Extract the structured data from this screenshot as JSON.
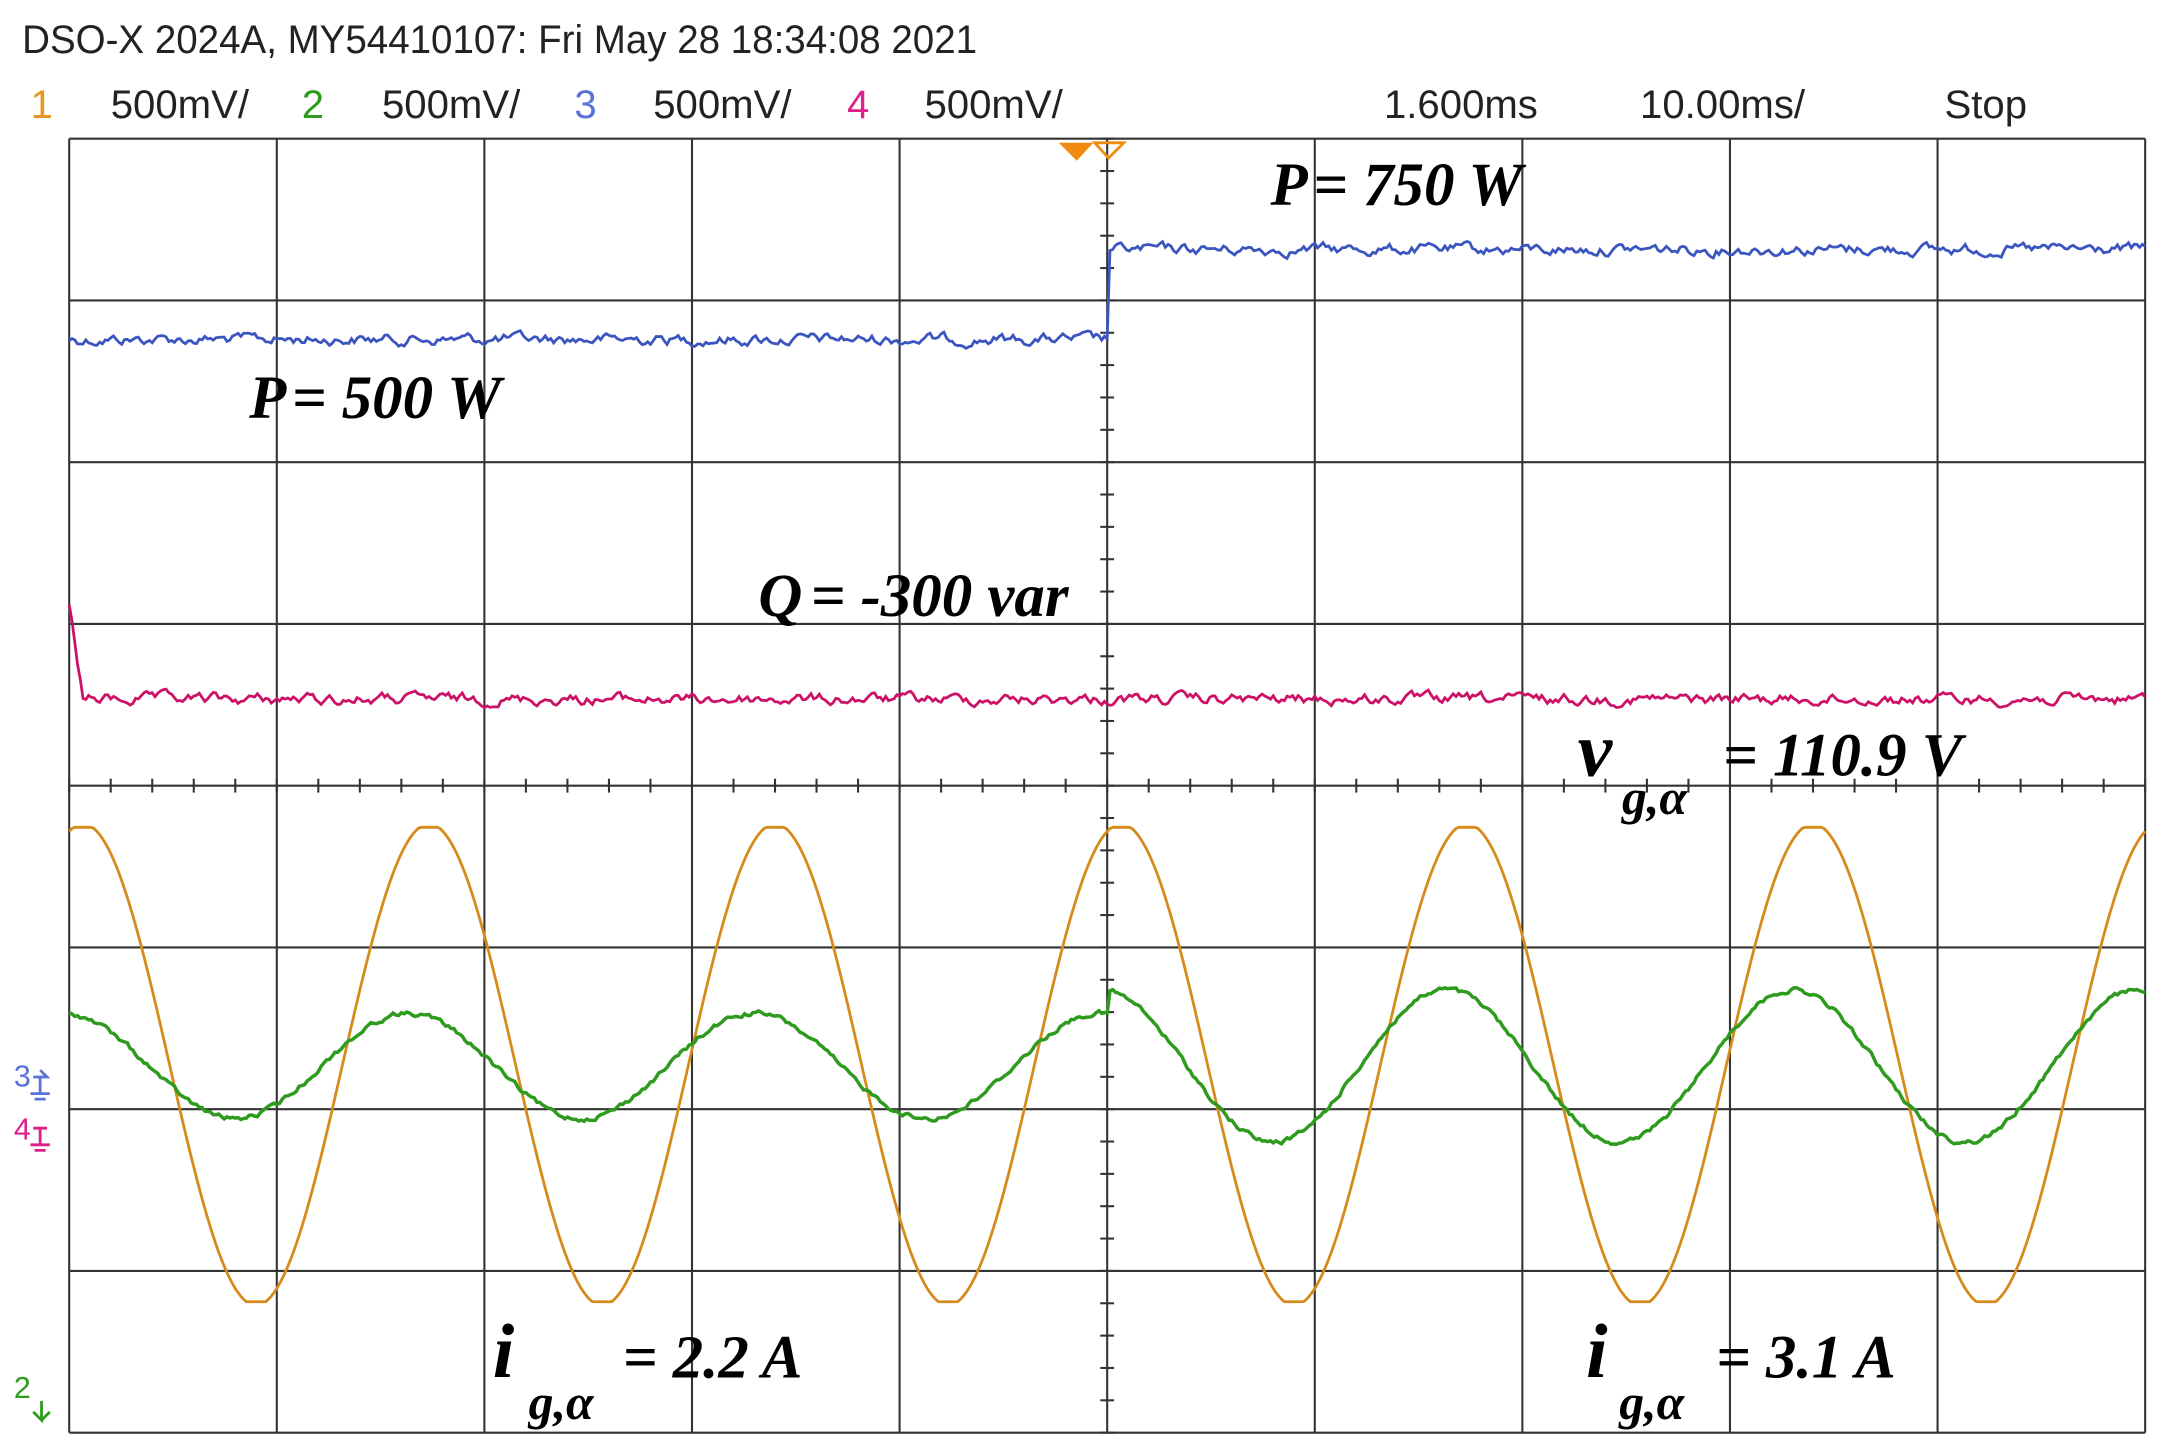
{
  "header": {
    "title": "DSO-X 2024A, MY54410107: Fri May 28 18:34:08 2021",
    "channels": [
      {
        "number": "1",
        "scale": "500mV/"
      },
      {
        "number": "2",
        "scale": "500mV/"
      },
      {
        "number": "3",
        "scale": "500mV/"
      },
      {
        "number": "4",
        "scale": "500mV/"
      }
    ],
    "delay": "1.600ms",
    "timebase": "10.00ms/",
    "status": "Stop"
  },
  "annotations": [
    {
      "symbol": "P",
      "text": "= 750 W"
    },
    {
      "symbol": "P",
      "text": "= 500 W"
    },
    {
      "symbol": "Q",
      "text": "= -300 var"
    },
    {
      "symbol": "v",
      "subscript": "g,α",
      "text": "= 110.9 V"
    },
    {
      "symbol": "i",
      "subscript": "g,α",
      "text": "= 2.2 A"
    },
    {
      "symbol": "i",
      "subscript": "g,α",
      "text": "= 3.1 A"
    }
  ],
  "ground_markers": [
    "3",
    "4",
    "2"
  ]
}
